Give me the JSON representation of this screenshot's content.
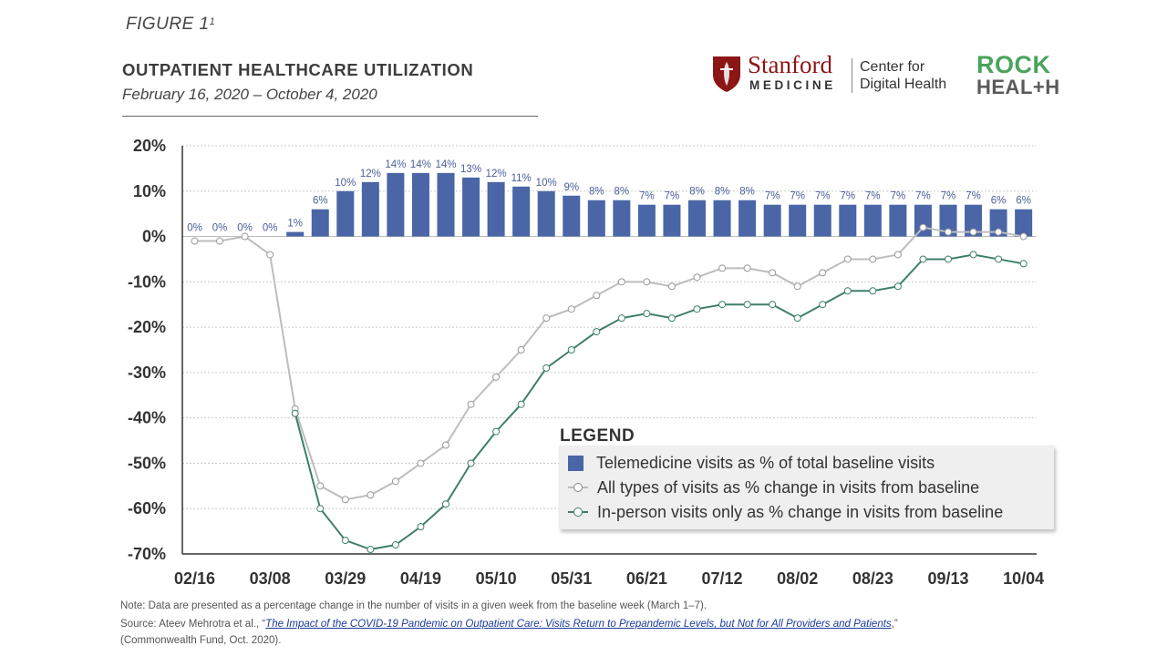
{
  "figure": {
    "label": "FIGURE 1",
    "superscript": "1",
    "title": "OUTPATIENT HEALTHCARE UTILIZATION",
    "subtitle": "February 16, 2020 – October 4, 2020"
  },
  "logos": {
    "stanford_name": "Stanford",
    "stanford_sub": "MEDICINE",
    "center_line1": "Center for",
    "center_line2": "Digital Health",
    "rock_line1": "ROCK",
    "rock_line2": "HEAL+H"
  },
  "legend": {
    "title": "LEGEND",
    "items": [
      "Telemedicine visits as % of total baseline visits",
      "All types of visits as % change in visits from baseline",
      "In-person visits only as % change in visits from baseline"
    ]
  },
  "footer": {
    "note": "Note: Data are presented as a percentage change in the number of visits in a given week from the baseline week (March 1–7).",
    "source_prefix": "Source: Ateev Mehrotra et al., “",
    "source_link": "The Impact of the COVID-19 Pandemic on Outpatient Care: Visits Return to Prepandemic Levels, but Not for All Providers and Patients",
    "source_suffix": ",”",
    "source_line2": "(Commonwealth Fund, Oct. 2020)."
  },
  "colors": {
    "bar": "#4a66a6",
    "all_visits_line": "#bdbdbd",
    "in_person_line": "#3d7f6c",
    "grid": "#cccccc"
  },
  "chart_data": {
    "type": "bar",
    "x_tick_labels": [
      "02/16",
      "03/08",
      "03/29",
      "04/19",
      "05/10",
      "05/31",
      "06/21",
      "07/12",
      "08/02",
      "08/23",
      "09/13",
      "10/04"
    ],
    "y_tick_labels": [
      "20%",
      "10%",
      "0%",
      "-10%",
      "-20%",
      "-30%",
      "-40%",
      "-50%",
      "-60%",
      "-70%"
    ],
    "ylim": [
      -70,
      20
    ],
    "grid": true,
    "legend_position": "bottom-right",
    "weeks": 34,
    "series": [
      {
        "name": "Telemedicine visits as % of total baseline visits",
        "type": "bar",
        "values": [
          0,
          0,
          0,
          0,
          1,
          6,
          10,
          12,
          14,
          14,
          14,
          13,
          12,
          11,
          10,
          9,
          8,
          8,
          7,
          7,
          8,
          8,
          8,
          7,
          7,
          7,
          7,
          7,
          7,
          7,
          7,
          7,
          6,
          6
        ],
        "labels": [
          "0%",
          "0%",
          "0%",
          "0%",
          "1%",
          "6%",
          "10%",
          "12%",
          "14%",
          "14%",
          "14%",
          "13%",
          "12%",
          "11%",
          "10%",
          "9%",
          "8%",
          "8%",
          "7%",
          "7%",
          "8%",
          "8%",
          "8%",
          "7%",
          "7%",
          "7%",
          "7%",
          "7%",
          "7%",
          "7%",
          "7%",
          "7%",
          "6%",
          "6%"
        ],
        "label_start": 0
      },
      {
        "name": "All types of visits as % change in visits from baseline",
        "type": "line",
        "values": [
          -1,
          -1,
          0,
          -4,
          -38,
          -55,
          -58,
          -57,
          -54,
          -50,
          -46,
          -37,
          -31,
          -25,
          -18,
          -16,
          -13,
          -10,
          -10,
          -11,
          -9,
          -7,
          -7,
          -8,
          -11,
          -8,
          -5,
          -5,
          -4,
          2,
          1,
          1,
          1,
          0
        ]
      },
      {
        "name": "In-person visits only as % change in visits from baseline",
        "type": "line",
        "values": [
          null,
          null,
          null,
          null,
          -39,
          -60,
          -67,
          -69,
          -68,
          -64,
          -59,
          -50,
          -43,
          -37,
          -29,
          -25,
          -21,
          -18,
          -17,
          -18,
          -16,
          -15,
          -15,
          -15,
          -18,
          -15,
          -12,
          -12,
          -11,
          -5,
          -5,
          -4,
          -5,
          -6
        ]
      }
    ]
  }
}
